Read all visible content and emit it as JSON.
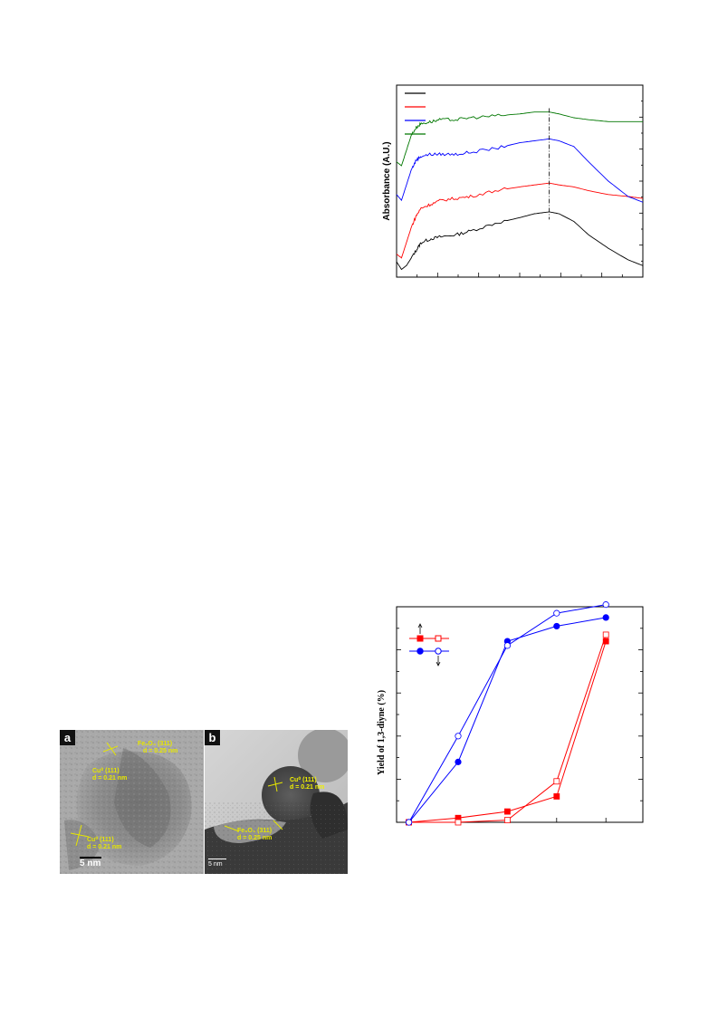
{
  "uv_chart": {
    "chart_data": {
      "type": "line",
      "ylabel": "Absorbance (A.U.)",
      "xlabel": "",
      "title": "",
      "x_range": [
        0,
        100
      ],
      "y_range": [
        0,
        100
      ],
      "grid": false,
      "legend_placement": "top-left",
      "reference_line": 62,
      "series": [
        {
          "color": "#000000",
          "x": [
            0,
            2,
            4,
            6,
            8,
            10,
            14,
            18,
            24,
            30,
            40,
            50,
            56,
            62,
            66,
            72,
            78,
            86,
            94,
            100
          ],
          "y": [
            8,
            4,
            6,
            10,
            14,
            18,
            20,
            21,
            22,
            24,
            28,
            31,
            33,
            34,
            33,
            29,
            22,
            15,
            9,
            6
          ]
        },
        {
          "color": "#ff0000",
          "x": [
            0,
            2,
            4,
            6,
            8,
            10,
            14,
            18,
            24,
            30,
            40,
            50,
            56,
            62,
            66,
            72,
            78,
            86,
            94,
            100
          ],
          "y": [
            12,
            10,
            18,
            26,
            32,
            36,
            38,
            40,
            41,
            42,
            45,
            47,
            48,
            49,
            48,
            47,
            45,
            43,
            42,
            41
          ]
        },
        {
          "color": "#0000ff",
          "x": [
            0,
            2,
            4,
            6,
            8,
            10,
            14,
            18,
            24,
            30,
            40,
            50,
            56,
            62,
            66,
            72,
            78,
            86,
            94,
            100
          ],
          "y": [
            43,
            40,
            48,
            56,
            61,
            63,
            64,
            64,
            64,
            65,
            67,
            70,
            71,
            72,
            71,
            68,
            60,
            50,
            42,
            39
          ]
        },
        {
          "color": "#007700",
          "x": [
            0,
            2,
            4,
            6,
            8,
            10,
            14,
            18,
            24,
            30,
            40,
            50,
            56,
            62,
            66,
            72,
            78,
            86,
            94,
            100
          ],
          "y": [
            60,
            58,
            66,
            74,
            78,
            80,
            81,
            82,
            82,
            83,
            84,
            85,
            86,
            86,
            85,
            83,
            82,
            81,
            81,
            81
          ]
        }
      ]
    }
  },
  "tem": {
    "panel_a": {
      "letter": "a",
      "label_fe": "Fe₃O₄ (311)",
      "label_fe_d": "d = 0.25 nm",
      "label_cu1": "Cu⁰ (111)",
      "label_cu1_d": "d = 0.21 nm",
      "label_cu2": "Cu⁰ (111)",
      "label_cu2_d": "d = 0.21 nm",
      "scale": "5 nm"
    },
    "panel_b": {
      "letter": "b",
      "label_cu": "Cu⁰ (111)",
      "label_cu_d": "d = 0.21 nm",
      "label_fe": "Fe₃O₄ (311)",
      "label_fe_d": "d = 0.25 nm",
      "scale": "5 nm"
    }
  },
  "yield_chart": {
    "chart_data": {
      "type": "line",
      "ylabel": "Yield of 1,3-diyne (%)",
      "xlabel": "",
      "title": "",
      "x_range": [
        0,
        100
      ],
      "y_range": [
        0,
        100
      ],
      "grid": false,
      "legend_placement": "top-left",
      "series": [
        {
          "color": "#ff0000",
          "marker": "square-filled",
          "x": [
            5,
            25,
            45,
            65,
            85
          ],
          "y": [
            0,
            2,
            5,
            12,
            84
          ]
        },
        {
          "color": "#ff0000",
          "marker": "square-open",
          "x": [
            5,
            25,
            45,
            65,
            85
          ],
          "y": [
            0,
            0,
            1,
            19,
            87
          ]
        },
        {
          "color": "#0000ff",
          "marker": "circle-filled",
          "x": [
            5,
            25,
            45,
            65,
            85
          ],
          "y": [
            0,
            28,
            84,
            91,
            95
          ]
        },
        {
          "color": "#0000ff",
          "marker": "circle-open",
          "x": [
            5,
            25,
            45,
            65,
            85
          ],
          "y": [
            0,
            40,
            82,
            97,
            101
          ]
        }
      ]
    }
  }
}
